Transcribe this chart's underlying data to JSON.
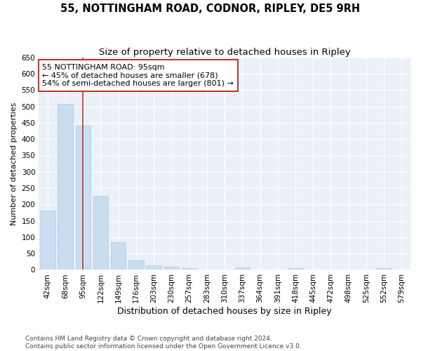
{
  "title": "55, NOTTINGHAM ROAD, CODNOR, RIPLEY, DE5 9RH",
  "subtitle": "Size of property relative to detached houses in Ripley",
  "xlabel": "Distribution of detached houses by size in Ripley",
  "ylabel": "Number of detached properties",
  "categories": [
    "42sqm",
    "68sqm",
    "95sqm",
    "122sqm",
    "149sqm",
    "176sqm",
    "203sqm",
    "230sqm",
    "257sqm",
    "283sqm",
    "310sqm",
    "337sqm",
    "364sqm",
    "391sqm",
    "418sqm",
    "445sqm",
    "472sqm",
    "498sqm",
    "525sqm",
    "552sqm",
    "579sqm"
  ],
  "values": [
    182,
    508,
    441,
    227,
    84,
    28,
    14,
    9,
    5,
    0,
    0,
    8,
    0,
    0,
    5,
    0,
    0,
    0,
    0,
    5,
    0
  ],
  "bar_color": "#c8ddf0",
  "bar_edge_color": "#adc8e0",
  "vline_x": 2,
  "vline_color": "#c0392b",
  "annotation_text": "55 NOTTINGHAM ROAD: 95sqm\n← 45% of detached houses are smaller (678)\n54% of semi-detached houses are larger (801) →",
  "annotation_box_color": "white",
  "annotation_box_edge": "#c0392b",
  "ylim": [
    0,
    650
  ],
  "yticks": [
    0,
    50,
    100,
    150,
    200,
    250,
    300,
    350,
    400,
    450,
    500,
    550,
    600,
    650
  ],
  "background_color": "#eaf0f8",
  "grid_color": "white",
  "footer": "Contains HM Land Registry data © Crown copyright and database right 2024.\nContains public sector information licensed under the Open Government Licence v3.0.",
  "title_fontsize": 10.5,
  "subtitle_fontsize": 9.5,
  "xlabel_fontsize": 9,
  "ylabel_fontsize": 8,
  "tick_fontsize": 7.5,
  "annotation_fontsize": 8,
  "footer_fontsize": 6.5
}
